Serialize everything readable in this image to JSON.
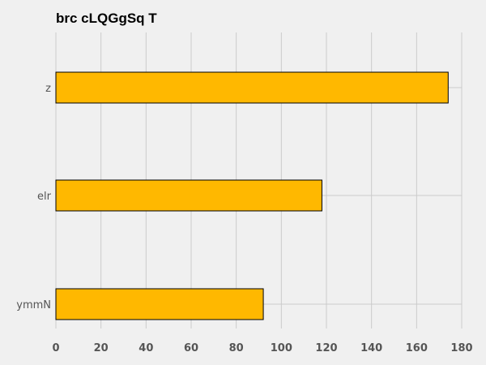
{
  "chart_data": {
    "type": "bar",
    "orientation": "horizontal",
    "title": "brc cLQGgSq T",
    "categories": [
      "z",
      "elr",
      "ymmN"
    ],
    "values": [
      174,
      118,
      92
    ],
    "xlabel": "",
    "ylabel": "",
    "xlim": [
      0,
      180
    ],
    "xticks": [
      0,
      20,
      40,
      60,
      80,
      100,
      120,
      140,
      160,
      180
    ],
    "grid": true,
    "legend": "none",
    "bar_color": "#ffb800",
    "bar_edge_color": "#000000",
    "background_color": "#f0f0f0",
    "grid_color": "#cbcbcb"
  }
}
